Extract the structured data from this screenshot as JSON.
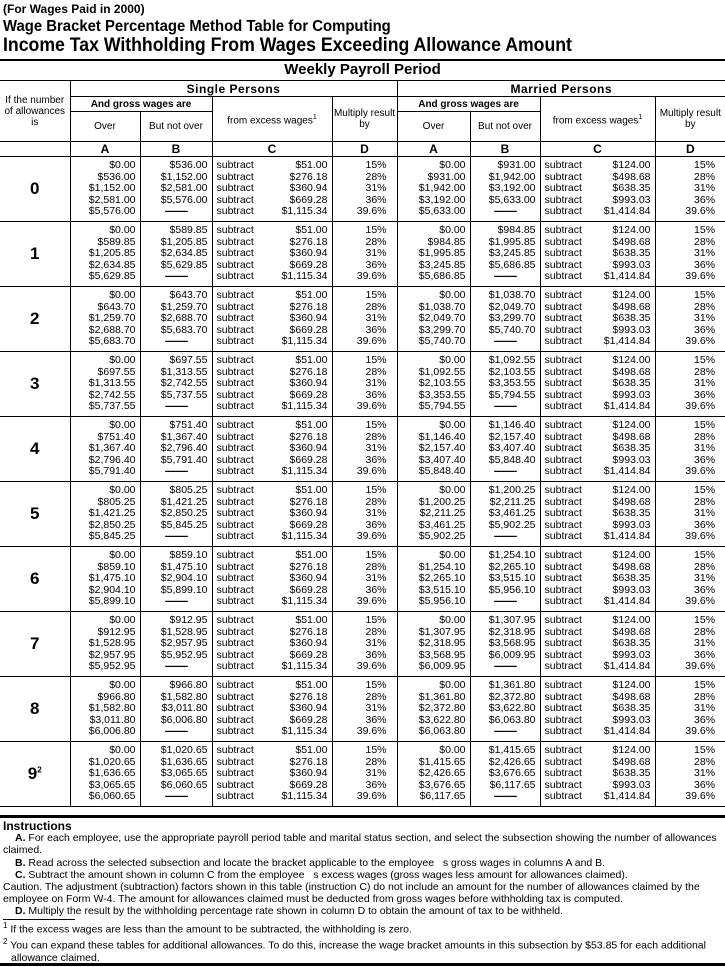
{
  "header": {
    "note": "(For Wages Paid in 2000)",
    "title_line1": "Wage Bracket Percentage Method Table for Computing",
    "title_line2": "Income Tax Withholding From Wages Exceeding Allowance Amount",
    "period": "Weekly Payroll Period"
  },
  "columns": {
    "allowances_label": "If the number of allowances is",
    "single_label": "Single Persons",
    "married_label": "Married Persons",
    "gross_wages": "And gross wages are",
    "over": "Over",
    "but_not_over": "But not over",
    "from_excess": "from excess wages",
    "footnote_mark": "1",
    "multiply": "Multiply result by",
    "letters": [
      "A",
      "B",
      "C",
      "D"
    ]
  },
  "subtract_label": "subtract",
  "dashes": "---------",
  "single_C": [
    "$51.00",
    "$276.18",
    "$360.94",
    "$669.28",
    "$1,115.34"
  ],
  "married_C": [
    "$124.00",
    "$498.68",
    "$638.35",
    "$993.03",
    "$1,414.84"
  ],
  "rates_D": [
    "15%",
    "28%",
    "31%",
    "36%",
    "39.6%"
  ],
  "rows": [
    {
      "allowances": "0",
      "sup": "",
      "single_A": [
        "$0.00",
        "$536.00",
        "$1,152.00",
        "$2,581.00",
        "$5,576.00"
      ],
      "single_B": [
        "$536.00",
        "$1,152.00",
        "$2,581.00",
        "$5,576.00"
      ],
      "married_A": [
        "$0.00",
        "$931.00",
        "$1,942.00",
        "$3,192.00",
        "$5,633.00"
      ],
      "married_B": [
        "$931.00",
        "$1,942.00",
        "$3,192.00",
        "$5,633.00"
      ]
    },
    {
      "allowances": "1",
      "sup": "",
      "single_A": [
        "$0.00",
        "$589.85",
        "$1,205.85",
        "$2,634.85",
        "$5,629.85"
      ],
      "single_B": [
        "$589.85",
        "$1,205.85",
        "$2,634.85",
        "$5,629.85"
      ],
      "married_A": [
        "$0.00",
        "$984.85",
        "$1,995.85",
        "$3,245.85",
        "$5,686.85"
      ],
      "married_B": [
        "$984.85",
        "$1,995.85",
        "$3,245.85",
        "$5,686.85"
      ]
    },
    {
      "allowances": "2",
      "sup": "",
      "single_A": [
        "$0.00",
        "$643.70",
        "$1,259.70",
        "$2,688.70",
        "$5,683.70"
      ],
      "single_B": [
        "$643.70",
        "$1,259.70",
        "$2,688.70",
        "$5,683.70"
      ],
      "married_A": [
        "$0.00",
        "$1,038.70",
        "$2,049.70",
        "$3,299.70",
        "$5,740.70"
      ],
      "married_B": [
        "$1,038.70",
        "$2,049.70",
        "$3,299.70",
        "$5,740.70"
      ]
    },
    {
      "allowances": "3",
      "sup": "",
      "single_A": [
        "$0.00",
        "$697.55",
        "$1,313.55",
        "$2,742.55",
        "$5,737.55"
      ],
      "single_B": [
        "$697.55",
        "$1,313.55",
        "$2,742.55",
        "$5,737.55"
      ],
      "married_A": [
        "$0.00",
        "$1,092.55",
        "$2,103.55",
        "$3,353.55",
        "$5,794.55"
      ],
      "married_B": [
        "$1,092.55",
        "$2,103.55",
        "$3,353.55",
        "$5,794.55"
      ]
    },
    {
      "allowances": "4",
      "sup": "",
      "single_A": [
        "$0.00",
        "$751.40",
        "$1,367.40",
        "$2,796.40",
        "$5,791.40"
      ],
      "single_B": [
        "$751.40",
        "$1,367.40",
        "$2,796.40",
        "$5,791.40"
      ],
      "married_A": [
        "$0.00",
        "$1,146.40",
        "$2,157.40",
        "$3,407.40",
        "$5,848.40"
      ],
      "married_B": [
        "$1,146.40",
        "$2,157.40",
        "$3,407.40",
        "$5,848.40"
      ]
    },
    {
      "allowances": "5",
      "sup": "",
      "single_A": [
        "$0.00",
        "$805.25",
        "$1,421.25",
        "$2,850.25",
        "$5,845.25"
      ],
      "single_B": [
        "$805.25",
        "$1,421.25",
        "$2,850.25",
        "$5,845.25"
      ],
      "married_A": [
        "$0.00",
        "$1,200.25",
        "$2,211.25",
        "$3,461.25",
        "$5,902.25"
      ],
      "married_B": [
        "$1,200.25",
        "$2,211.25",
        "$3,461.25",
        "$5,902.25"
      ]
    },
    {
      "allowances": "6",
      "sup": "",
      "single_A": [
        "$0.00",
        "$859.10",
        "$1,475.10",
        "$2,904.10",
        "$5,899.10"
      ],
      "single_B": [
        "$859.10",
        "$1,475.10",
        "$2,904.10",
        "$5,899.10"
      ],
      "married_A": [
        "$0.00",
        "$1,254.10",
        "$2,265.10",
        "$3,515.10",
        "$5,956.10"
      ],
      "married_B": [
        "$1,254.10",
        "$2,265.10",
        "$3,515.10",
        "$5,956.10"
      ]
    },
    {
      "allowances": "7",
      "sup": "",
      "single_A": [
        "$0.00",
        "$912.95",
        "$1,528.95",
        "$2,957.95",
        "$5,952.95"
      ],
      "single_B": [
        "$912.95",
        "$1,528.95",
        "$2,957.95",
        "$5,952.95"
      ],
      "married_A": [
        "$0.00",
        "$1,307.95",
        "$2,318.95",
        "$3,568.95",
        "$6,009.95"
      ],
      "married_B": [
        "$1,307.95",
        "$2,318.95",
        "$3,568.95",
        "$6,009.95"
      ]
    },
    {
      "allowances": "8",
      "sup": "",
      "single_A": [
        "$0.00",
        "$966.80",
        "$1,582.80",
        "$3,011.80",
        "$6,006.80"
      ],
      "single_B": [
        "$966.80",
        "$1,582.80",
        "$3,011.80",
        "$6,006.80"
      ],
      "married_A": [
        "$0.00",
        "$1,361.80",
        "$2,372.80",
        "$3,622.80",
        "$6,063.80"
      ],
      "married_B": [
        "$1,361.80",
        "$2,372.80",
        "$3,622.80",
        "$6,063.80"
      ]
    },
    {
      "allowances": "9",
      "sup": "2",
      "single_A": [
        "$0.00",
        "$1,020.65",
        "$1,636.65",
        "$3,065.65",
        "$6,060.65"
      ],
      "single_B": [
        "$1,020.65",
        "$1,636.65",
        "$3,065.65",
        "$6,060.65"
      ],
      "married_A": [
        "$0.00",
        "$1,415.65",
        "$2,426.65",
        "$3,676.65",
        "$6,117.65"
      ],
      "married_B": [
        "$1,415.65",
        "$2,426.65",
        "$3,676.65",
        "$6,117.65"
      ]
    }
  ],
  "instructions": {
    "heading": "Instructions",
    "A_key": "A.",
    "A_text": "For each employee, use the appropriate payroll period table and marital status section, and select the subsection showing the number of allowances claimed.",
    "B_key": "B.",
    "B_text": "Read across the selected subsection and locate the bracket applicable to the employee   s gross wages in columns A and B.",
    "C_key": "C.",
    "C_text": "Subtract the amount shown in column C from the employee   s excess wages (gross wages less amount for allowances claimed).",
    "caution": "Caution.   The adjustment (subtraction) factors shown in this table (instruction C) do not include an amount for the number of allowances claimed by the employee on Form W-4. The amount for allowances claimed must be deducted from gross wages before withholding tax is computed.",
    "D_key": "D.",
    "D_text": "Multiply the result by the withholding percentage rate shown in column D to obtain the amount of tax to be withheld."
  },
  "footnotes": [
    {
      "mark": "1",
      "text": "If the excess wages are less than the amount to be subtracted, the withholding is zero."
    },
    {
      "mark": "2",
      "text": "You can expand these tables for additional allowances. To do this, increase the wage bracket amounts in this subsection by $53.85 for each additional allowance claimed."
    }
  ]
}
